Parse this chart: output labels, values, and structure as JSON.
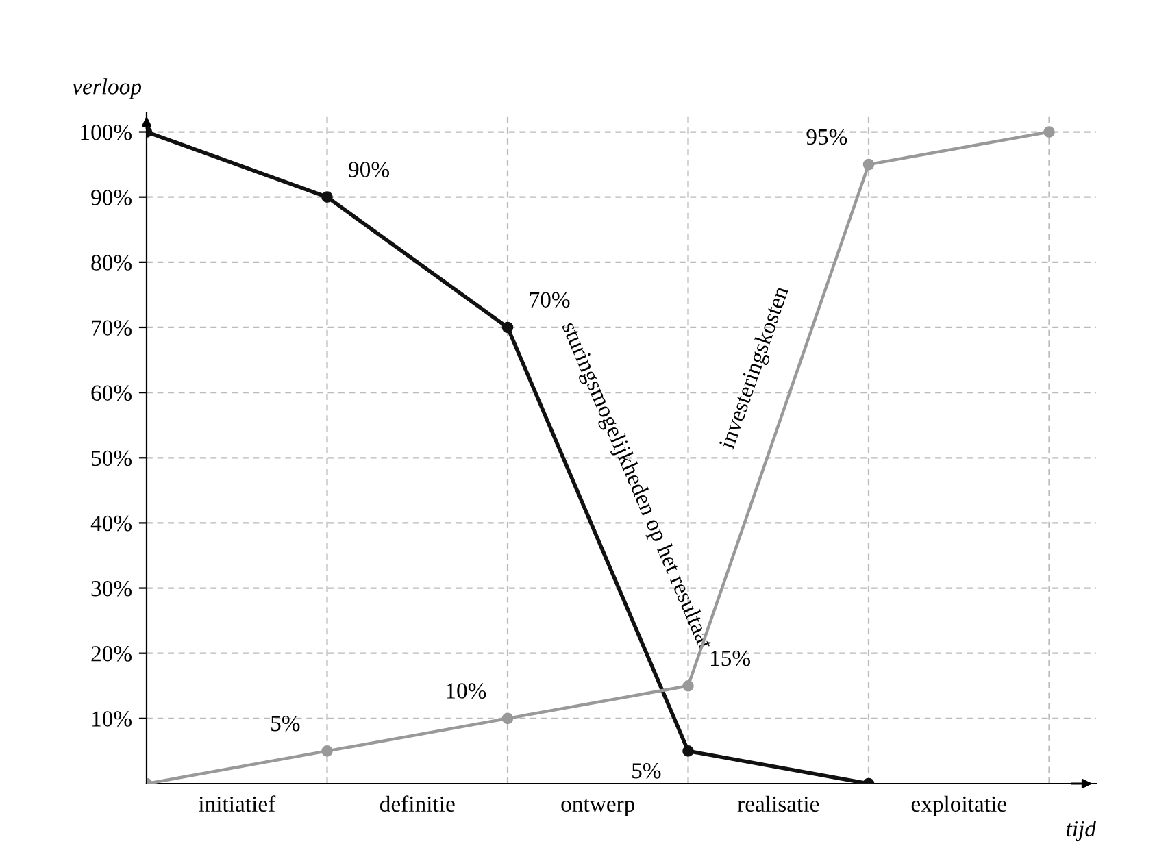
{
  "chart_data": {
    "type": "line",
    "xlabel": "tijd",
    "ylabel": "verloop",
    "categories": [
      null,
      null,
      null,
      null,
      null,
      null
    ],
    "annotations": [
      "initiatief",
      "definitie",
      "ontwerp",
      "realisatie",
      "exploitatie"
    ],
    "ylim": [
      0,
      103
    ],
    "yticks": [
      {
        "value": 10,
        "label": "10%"
      },
      {
        "value": 20,
        "label": "20%"
      },
      {
        "value": 30,
        "label": "30%"
      },
      {
        "value": 40,
        "label": "40%"
      },
      {
        "value": 50,
        "label": "50%"
      },
      {
        "value": 60,
        "label": "60%"
      },
      {
        "value": 70,
        "label": "70%"
      },
      {
        "value": 80,
        "label": "80%"
      },
      {
        "value": 90,
        "label": "90%"
      },
      {
        "value": 100,
        "label": "100%"
      }
    ],
    "series": [
      {
        "name": "sturingsmogelijkheden op het resultaat",
        "color": "#111111",
        "values": [
          100,
          90,
          70,
          5,
          0,
          null
        ],
        "value_labels": [
          null,
          "90%",
          "70%",
          "5%",
          null,
          null
        ]
      },
      {
        "name": "investeringskosten",
        "color": "#999999",
        "values": [
          0,
          5,
          10,
          15,
          95,
          100
        ],
        "value_labels": [
          null,
          "5%",
          "10%",
          "15%",
          "95%",
          null
        ]
      }
    ],
    "grid": true,
    "marker": "circle",
    "line_style": "solid"
  }
}
